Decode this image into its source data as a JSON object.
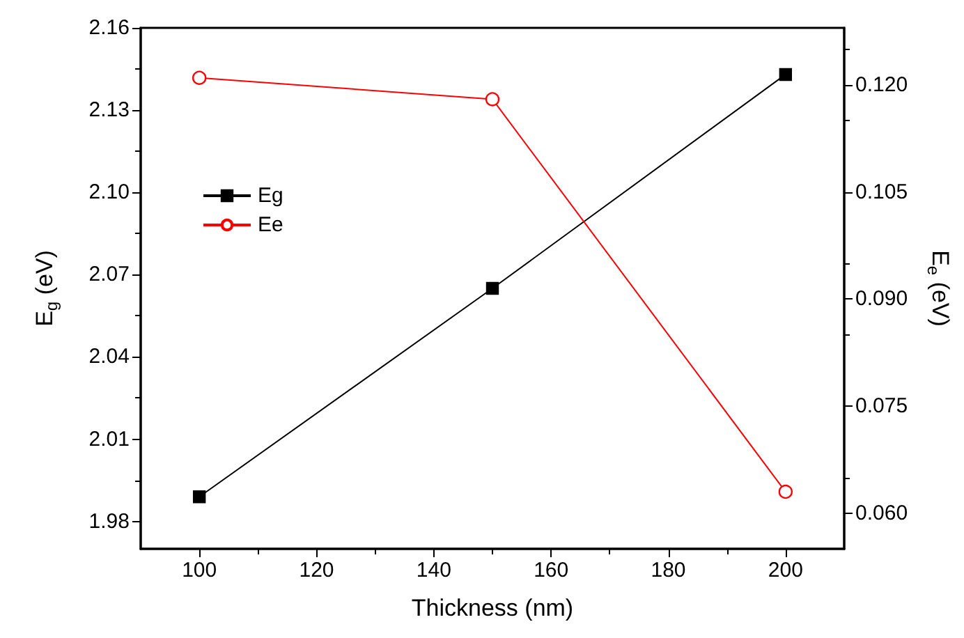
{
  "chart_data": {
    "type": "line",
    "xlabel": "Thickness (nm)",
    "ylabel": "E$_{g}$ (eV)",
    "y2label": "E$_{e}$ (eV)",
    "x": [
      100,
      150,
      200
    ],
    "series": [
      {
        "name": "Eg",
        "color": "#000000",
        "values": [
          1.989,
          2.065,
          2.143
        ],
        "marker": "square"
      },
      {
        "name": "Ee",
        "color": "#ff0000",
        "values": [
          0.121,
          0.118,
          0.063
        ],
        "axis": "y2",
        "marker": "circle"
      }
    ],
    "xlim": [
      90,
      210
    ],
    "xticks": [
      100,
      120,
      140,
      160,
      180,
      200
    ],
    "ylim": [
      1.97,
      2.16
    ],
    "yticks": [
      1.98,
      2.01,
      2.04,
      2.07,
      {
        "value": 2.1,
        "label": "2.10"
      },
      2.13,
      2.16
    ],
    "y2lim": [
      0.055,
      0.128
    ],
    "y2ticks": [
      {
        "value": 0.06,
        "label": "0.060"
      },
      0.075,
      {
        "value": 0.09,
        "label": "0.090"
      },
      0.105,
      {
        "value": 0.12,
        "label": "0.120"
      }
    ],
    "legend": "top left",
    "grid": false,
    "line_style": "solid"
  }
}
